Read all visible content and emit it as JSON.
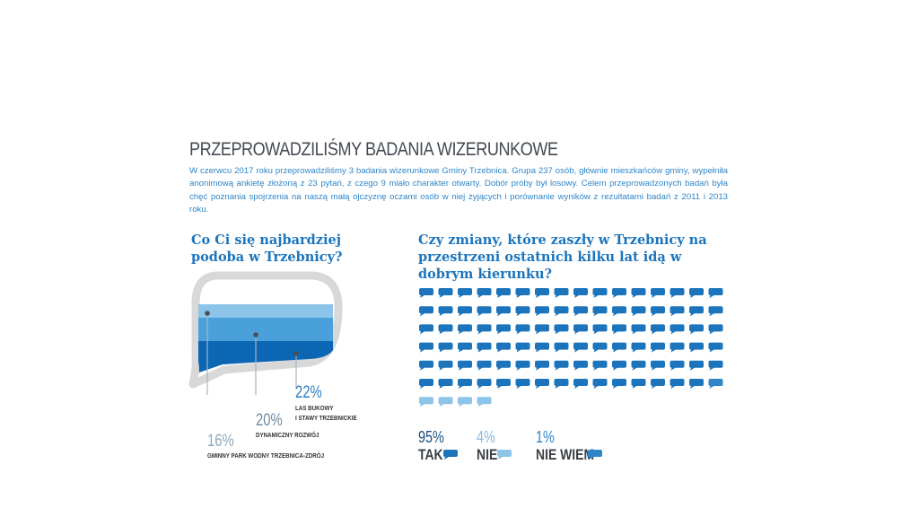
{
  "header": {
    "title": "PRZEPROWADZILIŚMY BADANIA WIZERUNKOWE",
    "intro": "W czerwcu 2017 roku przeprowadziliśmy 3 badania wizerunkowe Gminy Trzebnica. Grupa 237 osób, głównie mieszkańców gminy, wypełniła anonimową ankietę złożoną z 23 pytań, z czego 9 miało charakter otwarty. Dobór próby był losowy. Celem przeprowadzonych badań była chęć poznania spojrzenia na naszą małą ojczyznę oczami osób w niej żyjących i porównanie wyników z rezultatami badań z 2011 i 2013 roku."
  },
  "colors": {
    "tak": "#1c75bc",
    "nie": "#8cc4ea",
    "nie_wiem": "#2e86c8",
    "bubble_outline": "#d8d8d8"
  },
  "chart_data": [
    {
      "type": "bar",
      "title": "Co Ci się najbardziej podoba w Trzebnicy?",
      "categories": [
        "GMINNY PARK WODNY TRZEBNICA-ZDRÓJ",
        "DYNAMICZNY ROZWÓJ",
        "LAS BUKOWY I STAWY TRZEBNICKIE"
      ],
      "values": [
        16,
        20,
        22
      ],
      "labels": [
        "16%",
        "20%",
        "22%"
      ],
      "label_lines": [
        [
          "GMINNY PARK WODNY TRZEBNICA-ZDRÓJ"
        ],
        [
          "DYNAMICZNY ROZWÓJ"
        ],
        [
          "LAS BUKOWY",
          "I STAWY TRZEBNICKIE"
        ]
      ],
      "colors": [
        "#8cc4ea",
        "#4aa0da",
        "#0b67b4"
      ]
    },
    {
      "type": "pie",
      "title": "Czy zmiany, które zaszły w Trzebnicy na przestrzeni ostatnich kilku lat idą w dobrym kierunku?",
      "categories": [
        "TAK",
        "NIE",
        "NIE WIEM"
      ],
      "values": [
        95,
        4,
        1
      ],
      "labels": [
        "95%",
        "4%",
        "1%"
      ],
      "colors": [
        "#1c75bc",
        "#8cc4ea",
        "#2e86c8"
      ]
    }
  ]
}
